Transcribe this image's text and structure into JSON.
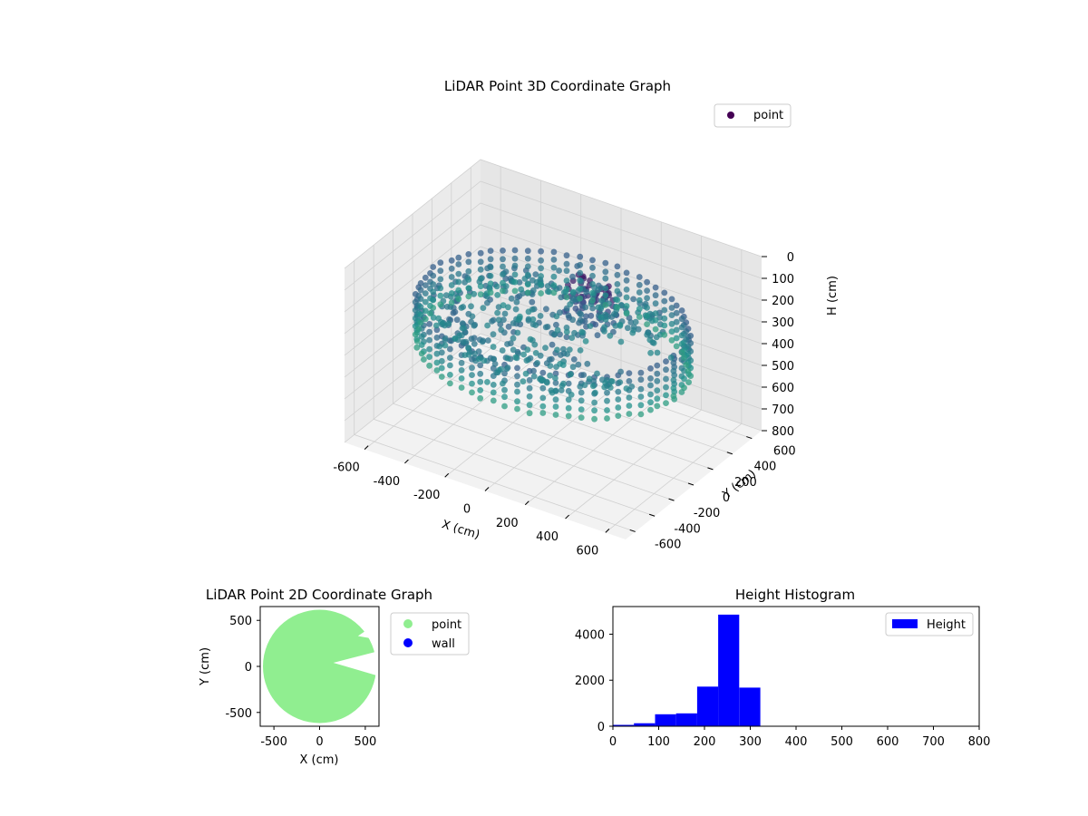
{
  "chart_data": [
    {
      "type": "scatter",
      "title": "LiDAR Point 3D Coordinate Graph",
      "xlabel": "X (cm)",
      "ylabel": "Y (cm)",
      "zlabel": "H (cm)",
      "xlim": [
        -700,
        700
      ],
      "ylim": [
        -700,
        700
      ],
      "zlim": [
        800,
        0
      ],
      "x_ticks": [
        "-600",
        "-400",
        "-200",
        "0",
        "200",
        "400",
        "600"
      ],
      "y_ticks": [
        "-600",
        "-400",
        "-200",
        "0",
        "200",
        "400",
        "600"
      ],
      "z_ticks": [
        "0",
        "100",
        "200",
        "300",
        "400",
        "500",
        "600",
        "700",
        "800"
      ],
      "legend": [
        "point"
      ],
      "legend_position": "top-right",
      "colormap": "viridis",
      "grid": true,
      "series": [
        {
          "name": "point",
          "description_points": [
            {
              "x": -400,
              "y": 520,
              "h": 240
            },
            {
              "x": 0,
              "y": 580,
              "h": 250
            },
            {
              "x": 450,
              "y": 450,
              "h": 260
            },
            {
              "x": 600,
              "y": 0,
              "h": 255
            },
            {
              "x": 450,
              "y": -450,
              "h": 250
            },
            {
              "x": 0,
              "y": -600,
              "h": 245
            },
            {
              "x": -450,
              "y": -450,
              "h": 250
            },
            {
              "x": -600,
              "y": 0,
              "h": 240
            },
            {
              "x": 50,
              "y": 100,
              "h": 80
            },
            {
              "x": 100,
              "y": 60,
              "h": 90
            },
            {
              "x": 150,
              "y": 80,
              "h": 120
            }
          ]
        }
      ]
    },
    {
      "type": "scatter",
      "title": "LiDAR Point 2D Coordinate Graph",
      "xlabel": "X (cm)",
      "ylabel": "Y (cm)",
      "xlim": [
        -650,
        650
      ],
      "ylim": [
        -650,
        650
      ],
      "x_ticks": [
        "-500",
        "0",
        "500"
      ],
      "y_ticks": [
        "500",
        "0",
        "-500"
      ],
      "legend": [
        "point",
        "wall"
      ],
      "legend_position": "outside-right",
      "series": [
        {
          "name": "point",
          "color": "#90ee90",
          "shape": "disc",
          "center": [
            0,
            0
          ],
          "radius": 620
        },
        {
          "name": "wall",
          "color": "#0000ff"
        }
      ]
    },
    {
      "type": "bar",
      "title": "Height Histogram",
      "xlim": [
        0,
        800
      ],
      "ylim": [
        0,
        5200
      ],
      "x_ticks": [
        "0",
        "100",
        "200",
        "300",
        "400",
        "500",
        "600",
        "700",
        "800"
      ],
      "y_ticks": [
        "0",
        "2000",
        "4000"
      ],
      "legend": [
        "Height"
      ],
      "legend_position": "top-right",
      "color": "#0000ff",
      "series": [
        {
          "name": "Height",
          "bins": [
            {
              "x0": 0,
              "x1": 46,
              "count": 60
            },
            {
              "x0": 46,
              "x1": 92,
              "count": 130
            },
            {
              "x0": 92,
              "x1": 138,
              "count": 520
            },
            {
              "x0": 138,
              "x1": 184,
              "count": 560
            },
            {
              "x0": 184,
              "x1": 230,
              "count": 1720
            },
            {
              "x0": 230,
              "x1": 276,
              "count": 4850
            },
            {
              "x0": 276,
              "x1": 322,
              "count": 1680
            }
          ]
        }
      ]
    }
  ]
}
